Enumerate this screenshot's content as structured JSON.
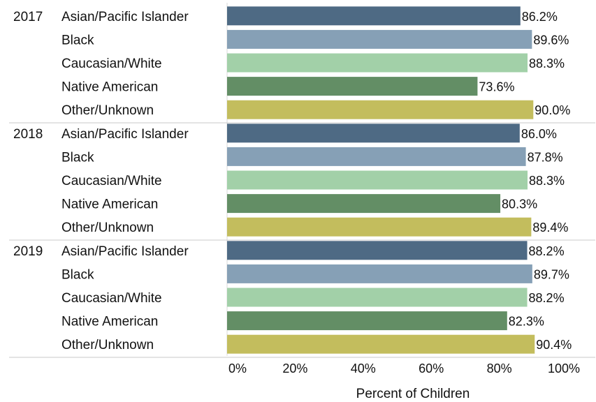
{
  "chart_data": {
    "type": "bar",
    "orientation": "horizontal",
    "title": "",
    "xlabel": "Percent of Children",
    "ylabel": "",
    "xlim": [
      0,
      100
    ],
    "x_ticks": [
      "0%",
      "20%",
      "40%",
      "60%",
      "80%",
      "100%"
    ],
    "grid": false,
    "legend": "none",
    "colors": {
      "Asian/Pacific Islander": "#4e6a84",
      "Black": "#86a0b6",
      "Caucasian/White": "#a2d0a8",
      "Native American": "#638e65",
      "Other/Unknown": "#c3bd5d"
    },
    "groups": [
      {
        "year": "2017",
        "bars": [
          {
            "category": "Asian/Pacific Islander",
            "value": 86.2,
            "label": "86.2%"
          },
          {
            "category": "Black",
            "value": 89.6,
            "label": "89.6%"
          },
          {
            "category": "Caucasian/White",
            "value": 88.3,
            "label": "88.3%"
          },
          {
            "category": "Native American",
            "value": 73.6,
            "label": "73.6%"
          },
          {
            "category": "Other/Unknown",
            "value": 90.0,
            "label": "90.0%"
          }
        ]
      },
      {
        "year": "2018",
        "bars": [
          {
            "category": "Asian/Pacific Islander",
            "value": 86.0,
            "label": "86.0%"
          },
          {
            "category": "Black",
            "value": 87.8,
            "label": "87.8%"
          },
          {
            "category": "Caucasian/White",
            "value": 88.3,
            "label": "88.3%"
          },
          {
            "category": "Native American",
            "value": 80.3,
            "label": "80.3%"
          },
          {
            "category": "Other/Unknown",
            "value": 89.4,
            "label": "89.4%"
          }
        ]
      },
      {
        "year": "2019",
        "bars": [
          {
            "category": "Asian/Pacific Islander",
            "value": 88.2,
            "label": "88.2%"
          },
          {
            "category": "Black",
            "value": 89.7,
            "label": "89.7%"
          },
          {
            "category": "Caucasian/White",
            "value": 88.2,
            "label": "88.2%"
          },
          {
            "category": "Native American",
            "value": 82.3,
            "label": "82.3%"
          },
          {
            "category": "Other/Unknown",
            "value": 90.4,
            "label": "90.4%"
          }
        ]
      }
    ]
  }
}
